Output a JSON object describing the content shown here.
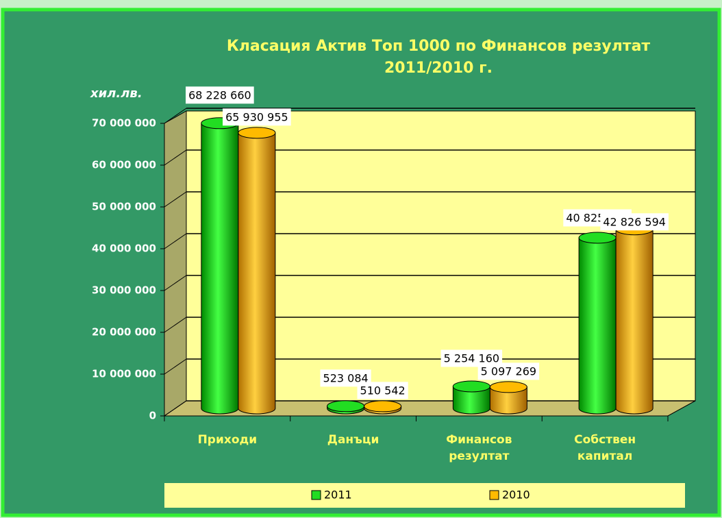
{
  "chart_data": {
    "type": "bar3d",
    "title": "Класация Актив Топ 1000  по Финансов резултат",
    "subtitle": "2011/2010 г.",
    "y_axis_label": "хил.лв.",
    "categories": [
      "Приходи",
      "Данъци",
      "Финансов резултат",
      "Собствен капитал"
    ],
    "series": [
      {
        "name": "2011",
        "color": "#22dd22",
        "values": [
          68228660,
          523084,
          5254160,
          40825960
        ],
        "value_labels": [
          "68 228 660",
          "523 084",
          "5 254 160",
          "40 825 960"
        ]
      },
      {
        "name": "2010",
        "color": "#ffbb00",
        "values": [
          65930955,
          510542,
          5097269,
          42826594
        ],
        "value_labels": [
          "65 930 955",
          "510 542",
          "5 097 269",
          "42 826 594"
        ]
      }
    ],
    "ylim": [
      0,
      70000000
    ],
    "yticks": [
      {
        "value": 0,
        "label": "0"
      },
      {
        "value": 10000000,
        "label": "10 000 000"
      },
      {
        "value": 20000000,
        "label": "20 000 000"
      },
      {
        "value": 30000000,
        "label": "30 000 000"
      },
      {
        "value": 40000000,
        "label": "40 000 000"
      },
      {
        "value": 50000000,
        "label": "50 000 000"
      },
      {
        "value": 60000000,
        "label": "60 000 000"
      },
      {
        "value": 70000000,
        "label": "70 000 000"
      }
    ],
    "grid": true,
    "legend": "bottom"
  }
}
